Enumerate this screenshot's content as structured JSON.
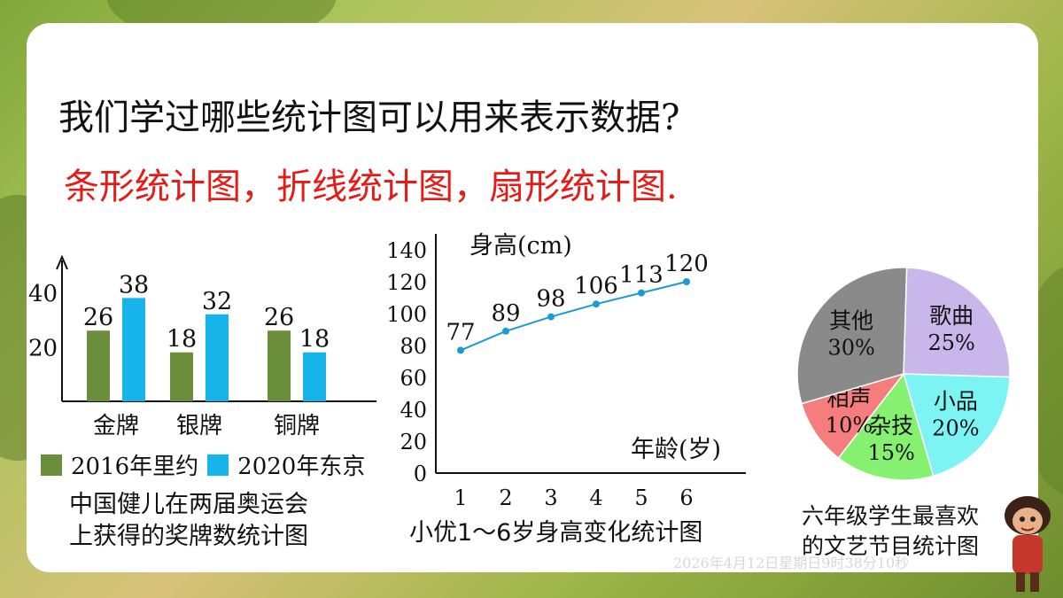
{
  "slide": {
    "question": "我们学过哪些统计图可以用来表示数据?",
    "answer": "条形统计图，折线统计图，扇形统计图."
  },
  "bar_chart": {
    "caption_line1": "中国健儿在两届奥运会",
    "caption_line2": "上获得的奖牌数统计图",
    "legend": [
      {
        "label": "2016年里约",
        "color": "#6b8e3d"
      },
      {
        "label": "2020年东京",
        "color": "#17b4ea"
      }
    ]
  },
  "line_chart": {
    "caption": "小优1～6岁身高变化统计图"
  },
  "pie_chart": {
    "caption_line1": "六年级学生最喜欢",
    "caption_line2": "的文艺节目统计图"
  },
  "watermark_date": "2026年4月12日星期日9时38分10秒",
  "chart_data": [
    {
      "type": "bar",
      "categories": [
        "金牌",
        "银牌",
        "铜牌"
      ],
      "series": [
        {
          "name": "2016年里约",
          "values": [
            26,
            18,
            26
          ],
          "color": "#6b8e3d"
        },
        {
          "name": "2020年东京",
          "values": [
            38,
            32,
            18
          ],
          "color": "#17b4ea"
        }
      ],
      "ytick_labels": [
        "20",
        "40"
      ],
      "ylim": [
        0,
        50
      ],
      "title": "中国健儿在两届奥运会上获得的奖牌数统计图"
    },
    {
      "type": "line",
      "x": [
        1,
        2,
        3,
        4,
        5,
        6
      ],
      "y": [
        77,
        89,
        98,
        106,
        113,
        120
      ],
      "xlabel": "年龄(岁)",
      "ylabel": "身高(cm)",
      "yticks": [
        0,
        20,
        40,
        60,
        80,
        100,
        120,
        140
      ],
      "xticks": [
        "1",
        "2",
        "3",
        "4",
        "5",
        "6"
      ],
      "ylim": [
        0,
        140
      ],
      "color": "#1a9ad6",
      "title": "小优1～6岁身高变化统计图"
    },
    {
      "type": "pie",
      "slices": [
        {
          "label": "歌曲",
          "value": 25,
          "text": "25%",
          "color": "#c9b7ec"
        },
        {
          "label": "小品",
          "value": 20,
          "text": "20%",
          "color": "#7cf4f4"
        },
        {
          "label": "杂技",
          "value": 15,
          "text": "15%",
          "color": "#86f070"
        },
        {
          "label": "相声",
          "value": 10,
          "text": "10%",
          "color": "#f57d7d"
        },
        {
          "label": "其他",
          "value": 30,
          "text": "30%",
          "color": "#8a8a8a"
        }
      ],
      "title": "六年级学生最喜欢的文艺节目统计图"
    }
  ]
}
